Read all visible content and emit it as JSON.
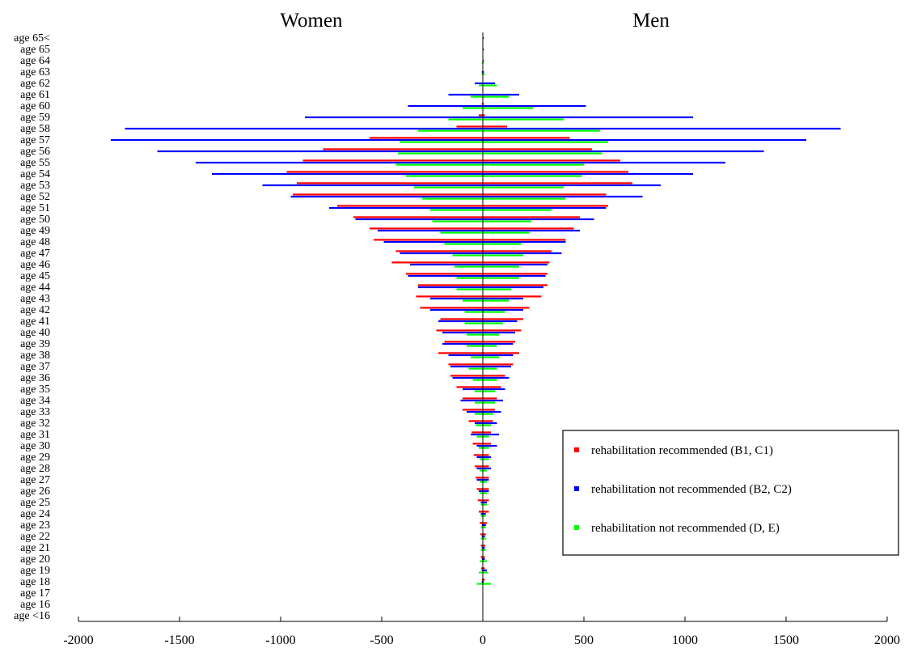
{
  "chart_data": {
    "type": "bar",
    "orientation": "horizontal",
    "group_titles": [
      "Women",
      "Men"
    ],
    "categories": [
      "age <16",
      "age 16",
      "age 17",
      "age 18",
      "age 19",
      "age 20",
      "age 21",
      "age 22",
      "age 23",
      "age 24",
      "age 25",
      "age 26",
      "age 27",
      "age 28",
      "age 29",
      "age 30",
      "age 31",
      "age 32",
      "age 33",
      "age 34",
      "age 35",
      "age 36",
      "age 37",
      "age 38",
      "age 39",
      "age 40",
      "age 41",
      "age 42",
      "age 43",
      "age 44",
      "age 45",
      "age 46",
      "age 47",
      "age 48",
      "age 49",
      "age 50",
      "age 51",
      "age 52",
      "age 53",
      "age 54",
      "age 55",
      "age 56",
      "age 57",
      "age 58",
      "age 59",
      "age 60",
      "age 61",
      "age 62",
      "age 63",
      "age 64",
      "age 65",
      "age 65<"
    ],
    "xlim": [
      -2000,
      2000
    ],
    "xticks": [
      -2000,
      -1500,
      -1000,
      -500,
      0,
      500,
      1000,
      1500,
      2000
    ],
    "legend_position": "right",
    "series": [
      {
        "name": "rehabilitation recommended (B1, C1)",
        "color": "#ff0000",
        "women": [
          0,
          0,
          0,
          -5,
          -8,
          -10,
          -10,
          -12,
          -15,
          -20,
          -25,
          -30,
          -35,
          -40,
          -45,
          -50,
          -55,
          -70,
          -100,
          -100,
          -130,
          -160,
          -170,
          -220,
          -190,
          -230,
          -210,
          -310,
          -330,
          -320,
          -380,
          -450,
          -430,
          -540,
          -560,
          -640,
          -720,
          -940,
          -920,
          -970,
          -890,
          -790,
          -560,
          -130,
          -20,
          -5,
          0,
          0,
          0,
          0,
          0,
          0
        ],
        "men": [
          0,
          0,
          0,
          10,
          10,
          10,
          12,
          15,
          20,
          30,
          30,
          30,
          30,
          30,
          30,
          40,
          40,
          50,
          60,
          70,
          90,
          110,
          150,
          180,
          160,
          190,
          200,
          230,
          290,
          320,
          320,
          330,
          340,
          410,
          450,
          480,
          620,
          610,
          740,
          720,
          680,
          540,
          430,
          120,
          10,
          5,
          0,
          0,
          0,
          0,
          0,
          0
        ]
      },
      {
        "name": "rehabilitation not recommended (B2, C2)",
        "color": "#0000ff",
        "women": [
          0,
          0,
          0,
          -5,
          -5,
          -5,
          -5,
          -5,
          -5,
          -10,
          -10,
          -20,
          -30,
          -30,
          -30,
          -30,
          -60,
          -40,
          -80,
          -110,
          -100,
          -150,
          -160,
          -170,
          -200,
          -200,
          -220,
          -260,
          -260,
          -320,
          -370,
          -360,
          -410,
          -490,
          -520,
          -630,
          -760,
          -950,
          -1090,
          -1340,
          -1420,
          -1610,
          -1840,
          -1770,
          -880,
          -370,
          -170,
          -40,
          -5,
          0,
          0,
          0
        ],
        "men": [
          0,
          0,
          0,
          5,
          20,
          10,
          10,
          10,
          15,
          15,
          20,
          30,
          30,
          40,
          40,
          70,
          80,
          70,
          90,
          100,
          110,
          130,
          140,
          150,
          150,
          160,
          170,
          200,
          200,
          300,
          310,
          320,
          390,
          410,
          480,
          550,
          610,
          790,
          880,
          1040,
          1200,
          1390,
          1600,
          1770,
          1040,
          510,
          180,
          60,
          5,
          5,
          5,
          5
        ]
      },
      {
        "name": "rehabilitation not recommended (D, E)",
        "color": "#00ff00",
        "women": [
          0,
          0,
          0,
          -30,
          -20,
          -15,
          -10,
          -10,
          -10,
          -10,
          -10,
          -15,
          -15,
          -15,
          -15,
          -20,
          -30,
          -35,
          -40,
          -40,
          -40,
          -50,
          -70,
          -60,
          -80,
          -80,
          -90,
          -90,
          -100,
          -130,
          -130,
          -140,
          -150,
          -190,
          -210,
          -250,
          -260,
          -300,
          -340,
          -380,
          -430,
          -420,
          -410,
          -320,
          -170,
          -100,
          -60,
          -20,
          -5,
          -5,
          0,
          0
        ],
        "men": [
          0,
          0,
          0,
          40,
          25,
          20,
          15,
          15,
          15,
          15,
          20,
          20,
          20,
          20,
          30,
          30,
          30,
          40,
          50,
          60,
          60,
          70,
          70,
          80,
          70,
          80,
          100,
          110,
          130,
          140,
          180,
          180,
          200,
          190,
          230,
          240,
          340,
          410,
          400,
          490,
          500,
          590,
          620,
          580,
          400,
          250,
          130,
          70,
          10,
          5,
          0,
          0
        ]
      }
    ]
  }
}
